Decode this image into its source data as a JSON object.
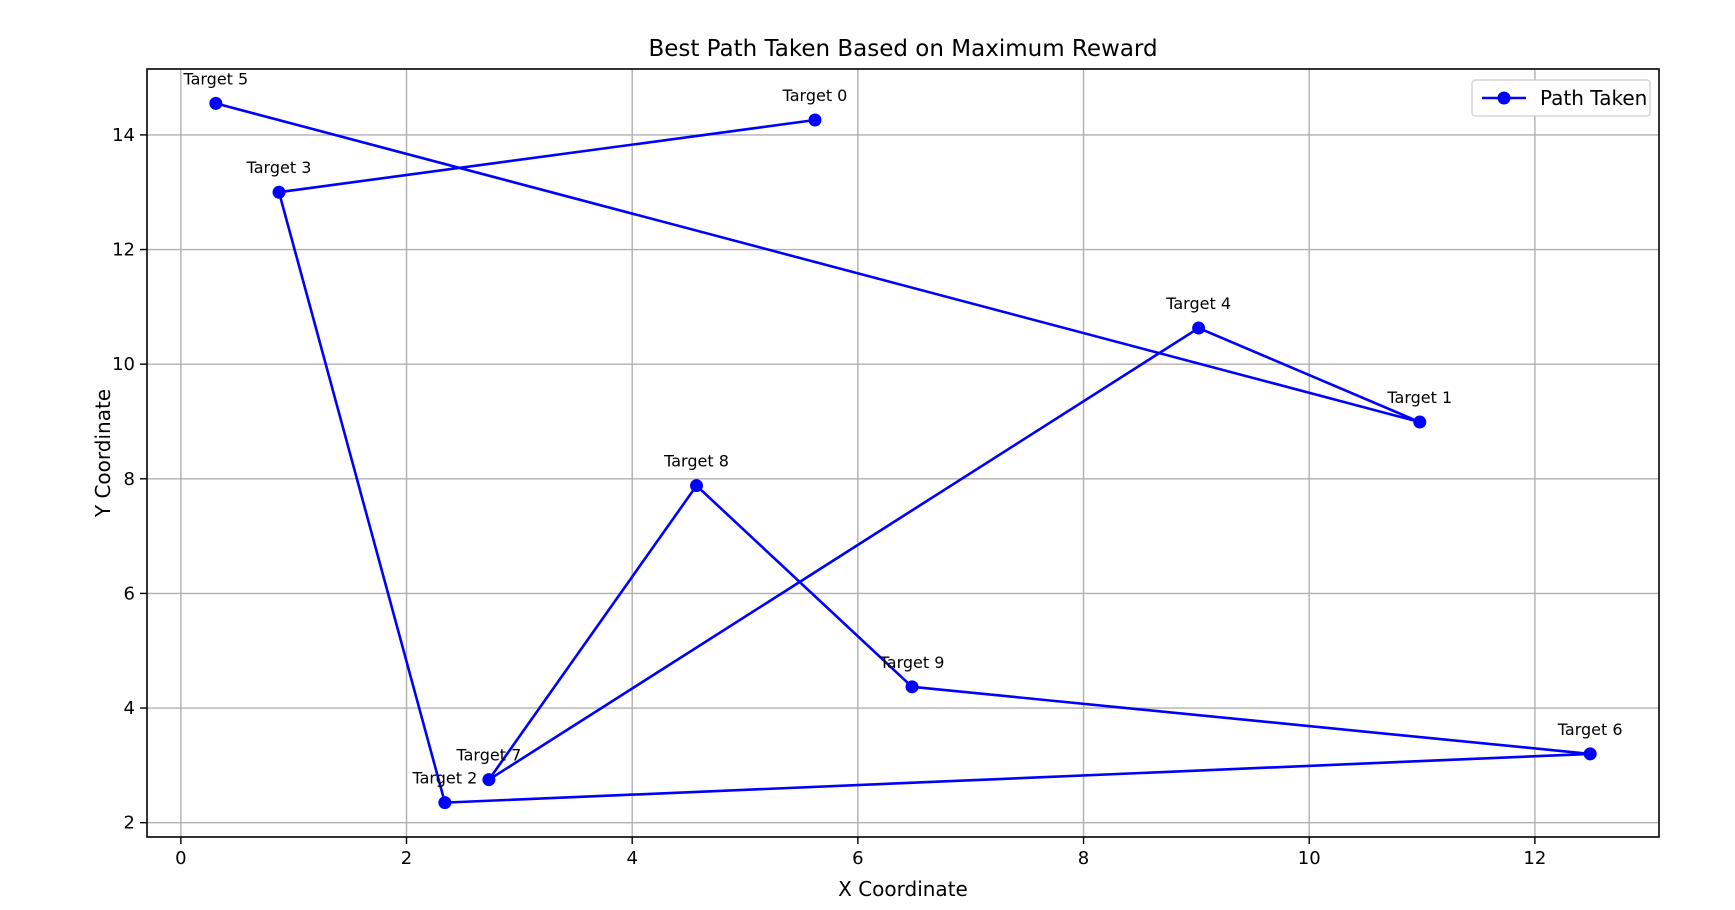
{
  "chart_data": {
    "type": "line",
    "title": "Best Path Taken Based on Maximum Reward",
    "xlabel": "X Coordinate",
    "ylabel": "Y Coordinate",
    "xlim": [
      -0.3,
      13.1
    ],
    "ylim": [
      1.75,
      15.15
    ],
    "xticks": [
      0,
      2,
      4,
      6,
      8,
      10,
      12
    ],
    "yticks": [
      2,
      4,
      6,
      8,
      10,
      12,
      14
    ],
    "grid": true,
    "legend_position": "top-right",
    "series": [
      {
        "name": "Path Taken",
        "color": "#0000ff",
        "marker": "circle",
        "points": [
          {
            "label": "Target 0",
            "x": 5.62,
            "y": 14.26
          },
          {
            "label": "Target 3",
            "x": 0.87,
            "y": 13.0
          },
          {
            "label": "Target 2",
            "x": 2.34,
            "y": 2.35
          },
          {
            "label": "Target 6",
            "x": 12.49,
            "y": 3.2
          },
          {
            "label": "Target 9",
            "x": 6.48,
            "y": 4.37
          },
          {
            "label": "Target 8",
            "x": 4.57,
            "y": 7.88
          },
          {
            "label": "Target 7",
            "x": 2.73,
            "y": 2.75
          },
          {
            "label": "Target 4",
            "x": 9.02,
            "y": 10.63
          },
          {
            "label": "Target 1",
            "x": 10.98,
            "y": 8.99
          },
          {
            "label": "Target 5",
            "x": 0.31,
            "y": 14.55
          }
        ]
      }
    ]
  }
}
